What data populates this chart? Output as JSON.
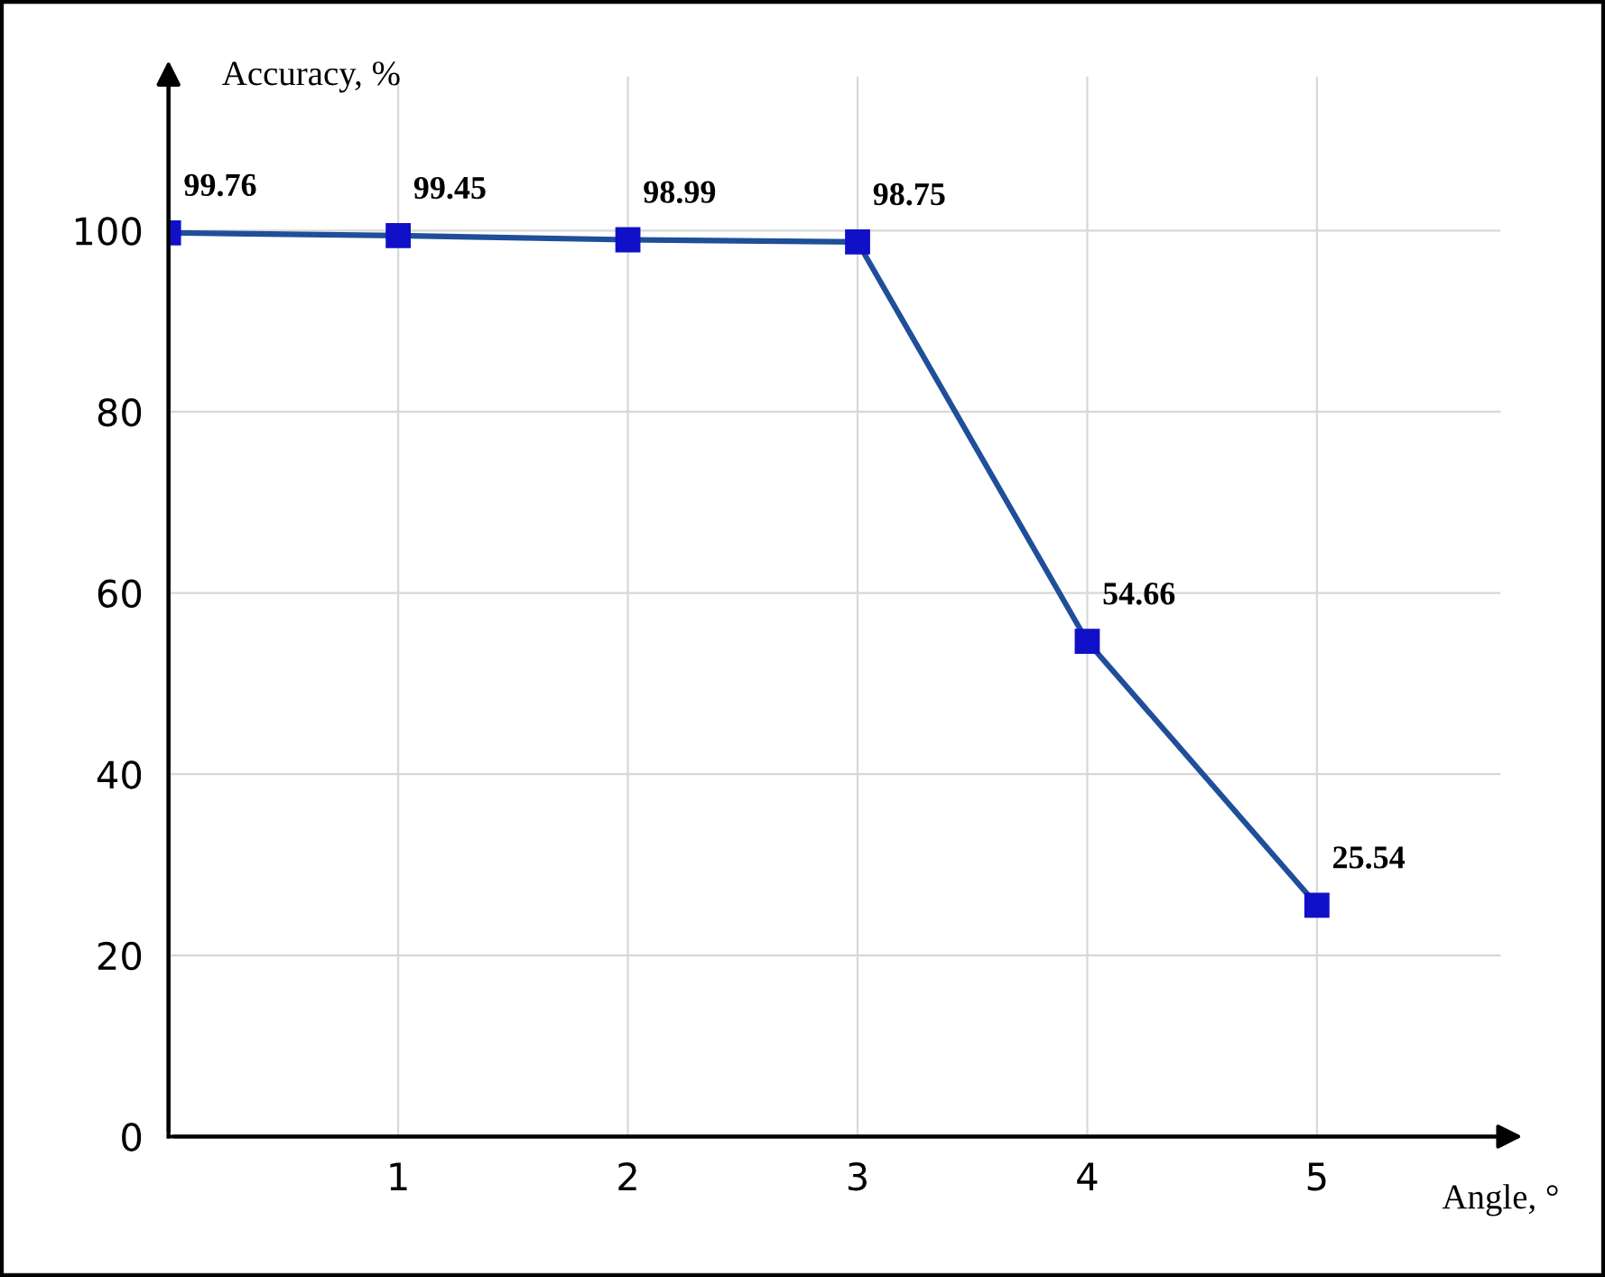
{
  "chart_data": {
    "type": "line",
    "xlabel": "Angle, °",
    "ylabel": "Accuracy, %",
    "x": [
      0,
      1,
      2,
      3,
      4,
      5
    ],
    "series": [
      {
        "color": "#1f4e9a",
        "values": [
          99.76,
          99.45,
          98.99,
          98.75,
          54.66,
          25.54
        ]
      }
    ],
    "marker": "square",
    "line_style": "solid",
    "data_labels": true,
    "grid": true,
    "xlim": [
      0,
      5.8
    ],
    "ylim": [
      0,
      117
    ],
    "xticks": [
      1,
      2,
      3,
      4,
      5
    ],
    "yticks": [
      0,
      20,
      40,
      60,
      80,
      100
    ]
  }
}
